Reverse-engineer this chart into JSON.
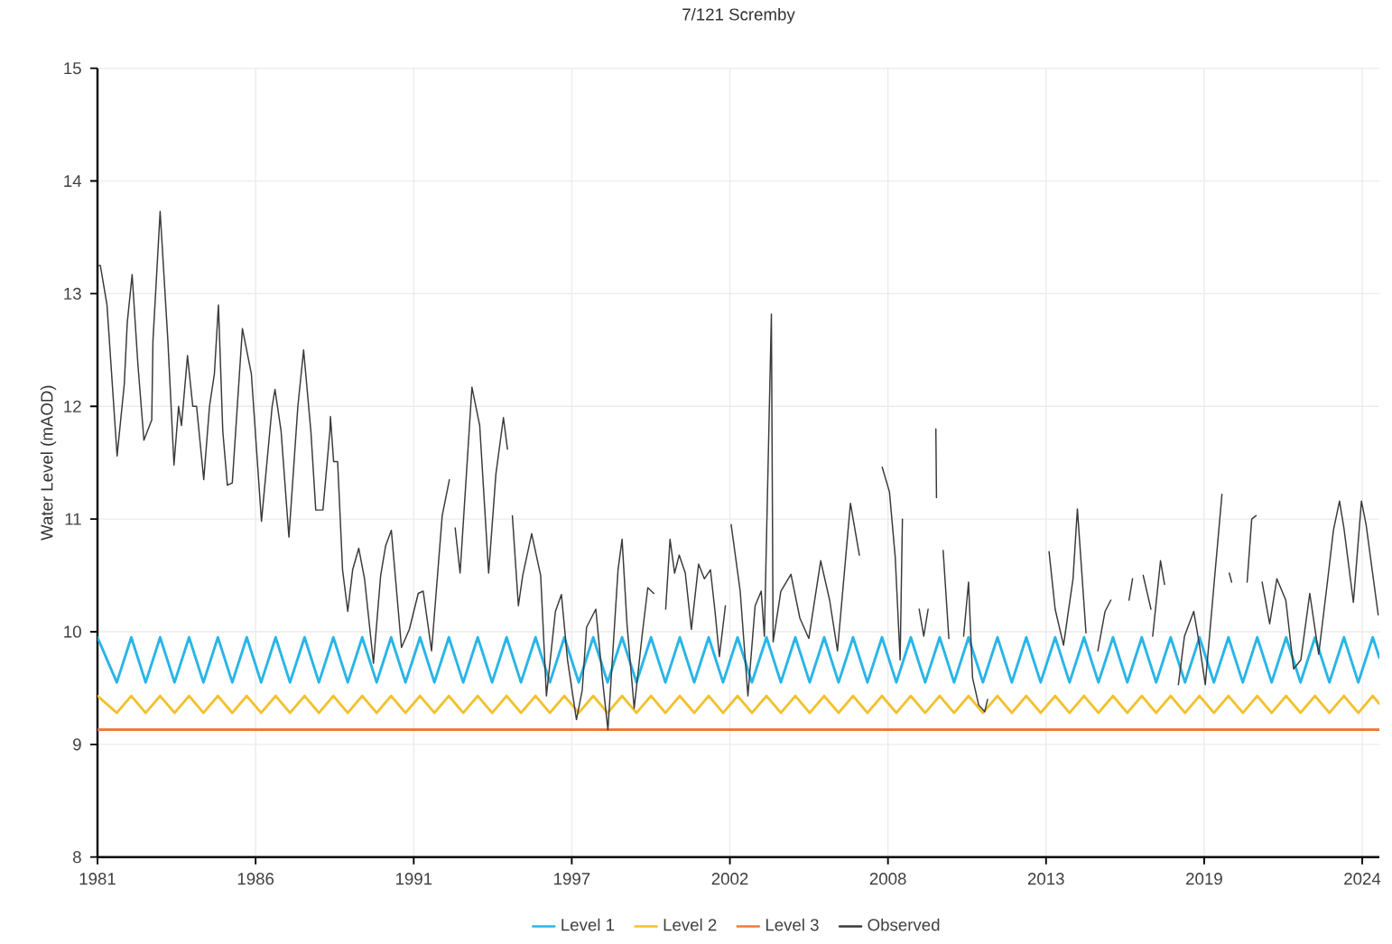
{
  "chart_data": {
    "type": "line",
    "title": "7/121 Scremby",
    "ylabel": "Water Level (mAOD)",
    "x": [
      "1981-01-01",
      "1981-09-02",
      "1982-03-04",
      "1982-09-02",
      "1983-03-04",
      "1983-09-02",
      "1984-03-04",
      "1984-09-02",
      "1985-03-04",
      "1985-09-02",
      "1986-03-04",
      "1986-09-02",
      "1987-03-04",
      "1987-09-02",
      "1988-03-04",
      "1988-09-02",
      "1989-03-04",
      "1989-09-02",
      "1990-03-04",
      "1990-09-02",
      "1991-03-04",
      "1991-09-02",
      "1992-03-04",
      "1992-09-02",
      "1993-03-04",
      "1993-09-02",
      "1994-03-04",
      "1994-09-02",
      "1995-03-04",
      "1995-09-02",
      "1996-03-04",
      "1996-09-02",
      "1997-03-04",
      "1997-09-02",
      "1998-03-04",
      "1998-09-02",
      "1999-03-04",
      "1999-09-02",
      "2000-03-04",
      "2000-09-02",
      "2001-03-04",
      "2001-09-02",
      "2002-03-04",
      "2002-09-02",
      "2003-03-04",
      "2003-09-02",
      "2004-03-04",
      "2004-09-02",
      "2005-03-04",
      "2005-09-02",
      "2006-03-04",
      "2006-09-02",
      "2007-03-04",
      "2007-09-02",
      "2008-03-04",
      "2008-09-02",
      "2009-03-04",
      "2009-09-02",
      "2010-03-04",
      "2010-09-02",
      "2011-03-04",
      "2011-09-02",
      "2012-03-04",
      "2012-09-02",
      "2013-03-04",
      "2013-09-02",
      "2014-03-04",
      "2014-09-02",
      "2015-03-04",
      "2015-09-02",
      "2016-03-04",
      "2016-09-02",
      "2017-03-04",
      "2017-09-02",
      "2018-03-04",
      "2018-09-02",
      "2019-03-04",
      "2019-09-02",
      "2020-03-04",
      "2020-09-02",
      "2021-03-04",
      "2021-09-02",
      "2022-03-04",
      "2022-09-02",
      "2023-03-04",
      "2023-09-02",
      "2024-03-04",
      "2024-09-02",
      "2025-03-04",
      "2025-05-27"
    ],
    "series": [
      {
        "name": "Level 1",
        "color": "#29b5e8",
        "values": [
          9.95,
          9.55,
          9.95,
          9.55,
          9.95,
          9.55,
          9.95,
          9.55,
          9.95,
          9.55,
          9.95,
          9.55,
          9.95,
          9.55,
          9.95,
          9.55,
          9.95,
          9.55,
          9.95,
          9.55,
          9.95,
          9.55,
          9.95,
          9.55,
          9.95,
          9.55,
          9.95,
          9.55,
          9.95,
          9.55,
          9.95,
          9.55,
          9.95,
          9.55,
          9.95,
          9.55,
          9.95,
          9.55,
          9.95,
          9.55,
          9.95,
          9.55,
          9.95,
          9.55,
          9.95,
          9.55,
          9.95,
          9.55,
          9.95,
          9.55,
          9.95,
          9.55,
          9.95,
          9.55,
          9.95,
          9.55,
          9.95,
          9.55,
          9.95,
          9.55,
          9.95,
          9.55,
          9.95,
          9.55,
          9.95,
          9.55,
          9.95,
          9.55,
          9.95,
          9.55,
          9.95,
          9.55,
          9.95,
          9.55,
          9.95,
          9.55,
          9.95,
          9.55,
          9.95,
          9.55,
          9.95,
          9.55,
          9.95,
          9.55,
          9.95,
          9.55,
          9.95,
          9.55,
          9.95,
          9.77
        ]
      },
      {
        "name": "Level 2",
        "color": "#f2c12e",
        "values": [
          9.43,
          9.28,
          9.43,
          9.28,
          9.43,
          9.28,
          9.43,
          9.28,
          9.43,
          9.28,
          9.43,
          9.28,
          9.43,
          9.28,
          9.43,
          9.28,
          9.43,
          9.28,
          9.43,
          9.28,
          9.43,
          9.28,
          9.43,
          9.28,
          9.43,
          9.28,
          9.43,
          9.28,
          9.43,
          9.28,
          9.43,
          9.28,
          9.43,
          9.28,
          9.43,
          9.28,
          9.43,
          9.28,
          9.43,
          9.28,
          9.43,
          9.28,
          9.43,
          9.28,
          9.43,
          9.28,
          9.43,
          9.28,
          9.43,
          9.28,
          9.43,
          9.28,
          9.43,
          9.28,
          9.43,
          9.28,
          9.43,
          9.28,
          9.43,
          9.28,
          9.43,
          9.28,
          9.43,
          9.28,
          9.43,
          9.28,
          9.43,
          9.28,
          9.43,
          9.28,
          9.43,
          9.28,
          9.43,
          9.28,
          9.43,
          9.28,
          9.43,
          9.28,
          9.43,
          9.28,
          9.43,
          9.28,
          9.43,
          9.28,
          9.43,
          9.28,
          9.43,
          9.28,
          9.43,
          9.36
        ]
      },
      {
        "name": "Level 3",
        "color": "#f07a3a",
        "x": [
          "1981-01-01",
          "2025-05-27"
        ],
        "values": [
          9.13,
          9.13
        ]
      },
      {
        "name": "Observed",
        "color": "#3a3a3a",
        "x": [
          "1981-01-08",
          "1981-02-06",
          "1981-05-01",
          "1981-09-06",
          "1981-12-06",
          "1982-01-12",
          "1982-03-15",
          "1982-05-27",
          "1982-08-11",
          "1982-11-18",
          "1982-12-03",
          "1983-03-04",
          "1983-06-10",
          "1983-08-26",
          "1983-10-23",
          "1983-11-29",
          "1984-02-13",
          "1984-04-20",
          "1984-06-07",
          "1984-09-06",
          "1984-11-18",
          "1985-01-19",
          "1985-03-11",
          "1985-05-05",
          "1985-07-02",
          "1985-09-02",
          "1986-01-08",
          "1986-05-01",
          "1986-09-06",
          "1987-01-19",
          "1987-02-24",
          "1987-05-12",
          "1987-08-19",
          "1987-12-10",
          "1988-02-21",
          "1988-05-23",
          "1988-07-24",
          "1988-10-23",
          "1989-01-19",
          "1989-01-26",
          "1989-03-07",
          "1989-04-27",
          "1989-06-28",
          "1989-09-02",
          "1989-11-03",
          "1990-01-19",
          "1990-04-02",
          "1990-07-24",
          "1990-10-23",
          "1990-12-24",
          "1991-03-07",
          "1991-07-13",
          "1991-10-20",
          "1992-02-10",
          "1992-04-13",
          "1992-07-28",
          "1992-12-10",
          "1993-03-11",
          "1993-04-02",
          "1993-05-23",
          "1993-07-24",
          "1993-12-21",
          "1994-03-29",
          "1994-07-20",
          "1994-10-20",
          "1995-01-23",
          "1995-03-15",
          "1995-04-13",
          "1995-05-16",
          "1995-07-31",
          "1995-09-24",
          "1996-01-15",
          "1996-05-08",
          "1996-07-20",
          "1996-11-11",
          "1997-01-26",
          "1997-04-13",
          "1997-08-04",
          "1997-10-16",
          "1997-12-10",
          "1998-04-06",
          "1998-07-06",
          "1998-09-06",
          "1999-01-12",
          "1999-03-04",
          "1999-05-05",
          "1999-08-04",
          "1999-11-11",
          "2000-01-23",
          "2000-04-09",
          "2000-06-14",
          "2000-09-06",
          "2000-10-31",
          "2000-12-28",
          "2001-02-24",
          "2001-05-12",
          "2001-07-28",
          "2001-10-27",
          "2002-01-08",
          "2002-03-26",
          "2002-05-23",
          "2002-07-17",
          "2002-10-01",
          "2002-11-07",
          "2002-12-13",
          "2003-04-06",
          "2003-07-13",
          "2003-10-12",
          "2003-12-28",
          "2004-02-06",
          "2004-05-05",
          "2004-05-27",
          "2004-09-02",
          "2005-01-08",
          "2005-05-01",
          "2005-08-22",
          "2006-01-19",
          "2006-05-12",
          "2006-08-19",
          "2007-01-30",
          "2007-05-23",
          "2007-09-13",
          "2008-03-07",
          "2008-06-07",
          "2008-08-19",
          "2008-10-20",
          "2008-11-18",
          "2009-02-06",
          "2009-06-18",
          "2009-08-15",
          "2009-10-09",
          "2009-11-25",
          "2010-01-15",
          "2010-01-23",
          "2010-02-24",
          "2010-04-17",
          "2010-06-28",
          "2010-10-01",
          "2011-01-01",
          "2011-03-04",
          "2011-04-24",
          "2011-07-10",
          "2011-09-24",
          "2011-10-31",
          "2012-07-02",
          "2013-12-17",
          "2014-03-04",
          "2014-06-18",
          "2014-10-16",
          "2014-12-10",
          "2015-03-29",
          "2015-05-27",
          "2015-08-26",
          "2015-11-25",
          "2016-02-06",
          "2016-05-27",
          "2016-09-24",
          "2016-11-07",
          "2017-01-01",
          "2017-03-22",
          "2017-06-28",
          "2017-07-10",
          "2017-07-20",
          "2017-10-27",
          "2017-12-17",
          "2018-03-15",
          "2018-06-10",
          "2018-08-26",
          "2018-12-21",
          "2019-03-04",
          "2019-05-16",
          "2019-09-06",
          "2019-12-13",
          "2020-01-19",
          "2020-03-15",
          "2020-04-13",
          "2020-07-02",
          "2020-10-27",
          "2020-12-24",
          "2021-02-17",
          "2021-03-22",
          "2021-05-05",
          "2021-08-08",
          "2021-11-07",
          "2022-02-28",
          "2022-06-07",
          "2022-09-06",
          "2022-12-28",
          "2023-04-20",
          "2023-08-08",
          "2023-10-23",
          "2024-01-08",
          "2024-03-04",
          "2024-07-02",
          "2024-10-12",
          "2024-12-10",
          "2025-05-12"
        ],
        "values": [
          13.25,
          13.25,
          12.9,
          11.56,
          12.2,
          12.74,
          13.17,
          12.37,
          11.7,
          11.88,
          12.58,
          13.73,
          12.58,
          11.48,
          12.0,
          11.83,
          12.45,
          12.0,
          12.0,
          11.35,
          12.0,
          12.29,
          12.9,
          11.78,
          11.3,
          11.32,
          12.69,
          12.29,
          10.98,
          12.0,
          12.15,
          11.78,
          10.84,
          12.0,
          12.5,
          11.78,
          11.08,
          11.08,
          11.78,
          11.91,
          11.51,
          11.51,
          10.55,
          10.18,
          10.55,
          10.74,
          10.47,
          9.72,
          10.5,
          10.76,
          10.9,
          9.86,
          10.02,
          10.34,
          10.36,
          9.83,
          11.03,
          11.35,
          null,
          10.92,
          10.52,
          12.17,
          11.83,
          10.52,
          11.4,
          11.9,
          11.62,
          null,
          11.03,
          10.23,
          10.5,
          10.87,
          10.5,
          9.43,
          10.18,
          10.33,
          9.75,
          9.22,
          9.48,
          10.04,
          10.2,
          9.53,
          9.13,
          10.55,
          10.82,
          10.07,
          9.32,
          9.96,
          10.39,
          10.34,
          null,
          10.2,
          10.82,
          10.52,
          10.68,
          10.52,
          10.02,
          10.6,
          10.47,
          10.55,
          10.18,
          9.78,
          10.23,
          null,
          10.95,
          10.36,
          9.43,
          10.23,
          10.36,
          9.96,
          12.82,
          9.91,
          10.36,
          10.51,
          10.12,
          9.94,
          10.63,
          10.28,
          9.83,
          11.14,
          10.68,
          null,
          11.46,
          11.24,
          10.66,
          9.75,
          11.0,
          null,
          10.2,
          9.96,
          10.2,
          null,
          11.8,
          11.19,
          null,
          10.72,
          9.94,
          null,
          9.96,
          10.44,
          9.59,
          9.35,
          9.29,
          9.4,
          null,
          10.71,
          10.2,
          9.88,
          10.47,
          11.09,
          9.99,
          null,
          9.83,
          10.18,
          10.28,
          null,
          10.28,
          10.47,
          null,
          10.5,
          10.2,
          null,
          9.96,
          10.63,
          10.42,
          null,
          9.53,
          9.96,
          10.18,
          9.88,
          9.53,
          10.44,
          11.22,
          null,
          10.52,
          10.44,
          null,
          10.44,
          11.0,
          11.03,
          null,
          10.44,
          10.07,
          10.47,
          10.28,
          9.67,
          9.75,
          10.34,
          9.8,
          10.44,
          10.9,
          11.16,
          10.92,
          10.26,
          11.16,
          10.95,
          10.15
        ]
      }
    ],
    "xlim": [
      "1981-01-01",
      "2025-05-27"
    ],
    "ylim": [
      8,
      15
    ],
    "xticks": [
      {
        "value": "1981-01-01",
        "label": "1981"
      },
      {
        "value": "1986-06-24",
        "label": "1986"
      },
      {
        "value": "1991-12-15",
        "label": "1991"
      },
      {
        "value": "1997-06-06",
        "label": "1997"
      },
      {
        "value": "2002-11-27",
        "label": "2002"
      },
      {
        "value": "2008-05-19",
        "label": "2008"
      },
      {
        "value": "2013-11-09",
        "label": "2013"
      },
      {
        "value": "2019-05-02",
        "label": "2019"
      },
      {
        "value": "2024-10-22",
        "label": "2024"
      }
    ],
    "yticks": [
      8,
      9,
      10,
      11,
      12,
      13,
      14,
      15
    ],
    "grid": true,
    "legend": "bottom"
  }
}
